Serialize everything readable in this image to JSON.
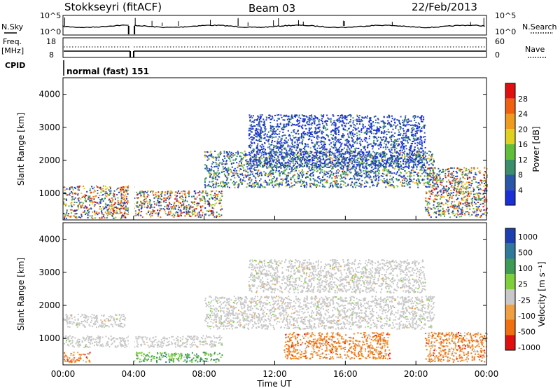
{
  "header": {
    "station": "Stokkseyri (fitACF)",
    "beam": "Beam 03",
    "date": "22/Feb/2013"
  },
  "aux_panels": {
    "nsky_label": "N.Sky",
    "nsky_scale_top": "10^5",
    "nsky_scale_bottom": "10^0",
    "nsearch_label": "N.Search",
    "nsearch_scale_top": "10^5",
    "nsearch_scale_bottom": "10^0",
    "freq_label_line1": "Freq.",
    "freq_label_line2": "[MHz]",
    "freq_ticks": [
      "18",
      "8"
    ],
    "nave_label": "Nave",
    "nave_ticks": [
      "60",
      "0"
    ],
    "cpid_label": "CPID",
    "cpid_value": "normal (fast) 151"
  },
  "chart_data": [
    {
      "type": "heatmap",
      "name": "power",
      "ylabel": "Slant Range [km]",
      "yticks": [
        "1000",
        "2000",
        "3000",
        "4000"
      ],
      "ylim": [
        200,
        4500
      ],
      "colorbar_label": "Power [dB]",
      "colorbar_ticks": [
        "4",
        "8",
        "12",
        "16",
        "20",
        "24",
        "28"
      ],
      "colors": [
        "#1a2fd6",
        "#2b57a8",
        "#3a8f6a",
        "#5fbf3a",
        "#e0d020",
        "#f09a20",
        "#f06010",
        "#e01010"
      ],
      "bands": [
        {
          "t_start": 0.0,
          "t_end": 4.0,
          "r_min": 250,
          "r_max": 1250,
          "level": "mixed"
        },
        {
          "t_start": 4.0,
          "t_end": 9.0,
          "r_min": 300,
          "r_max": 1100,
          "level": "mixed"
        },
        {
          "t_start": 8.0,
          "t_end": 21.0,
          "r_min": 1200,
          "r_max": 2300,
          "level": "mid"
        },
        {
          "t_start": 10.5,
          "t_end": 20.5,
          "r_min": 1800,
          "r_max": 3400,
          "level": "low"
        },
        {
          "t_start": 20.5,
          "t_end": 24.0,
          "r_min": 300,
          "r_max": 1800,
          "level": "mixed"
        }
      ]
    },
    {
      "type": "heatmap",
      "name": "velocity",
      "ylabel": "Slant Range [km]",
      "yticks": [
        "1000",
        "2000",
        "3000",
        "4000"
      ],
      "ylim": [
        200,
        4500
      ],
      "colorbar_label": "Velocity [m s⁻¹]",
      "colorbar_ticks": [
        "1000",
        "500",
        "100",
        "25",
        "-25",
        "-100",
        "-500",
        "-1000"
      ],
      "colors": [
        "#1e3fb0",
        "#2f7a9a",
        "#3f9a55",
        "#7fcf3a",
        "#c8c8c8",
        "#f0a040",
        "#f07010",
        "#e01010"
      ],
      "bands": [
        {
          "t_start": 0.0,
          "t_end": 3.5,
          "r_min": 1350,
          "r_max": 1750,
          "level": "ground"
        },
        {
          "t_start": 0.0,
          "t_end": 9.0,
          "r_min": 750,
          "r_max": 1100,
          "level": "ground"
        },
        {
          "t_start": 0.0,
          "t_end": 1.5,
          "r_min": 300,
          "r_max": 600,
          "level": "negative"
        },
        {
          "t_start": 4.0,
          "t_end": 9.0,
          "r_min": 300,
          "r_max": 600,
          "level": "positive"
        },
        {
          "t_start": 8.0,
          "t_end": 21.0,
          "r_min": 1300,
          "r_max": 2300,
          "level": "ground"
        },
        {
          "t_start": 10.5,
          "t_end": 20.5,
          "r_min": 2400,
          "r_max": 3400,
          "level": "ground"
        },
        {
          "t_start": 12.5,
          "t_end": 18.5,
          "r_min": 400,
          "r_max": 1200,
          "level": "negative"
        },
        {
          "t_start": 20.5,
          "t_end": 24.0,
          "r_min": 300,
          "r_max": 1200,
          "level": "negative"
        }
      ]
    }
  ],
  "xaxis": {
    "xlabel": "Time UT",
    "xticks": [
      "00:00",
      "04:00",
      "08:00",
      "12:00",
      "16:00",
      "20:00",
      "00:00"
    ],
    "xlim_hours": [
      0,
      24
    ]
  }
}
